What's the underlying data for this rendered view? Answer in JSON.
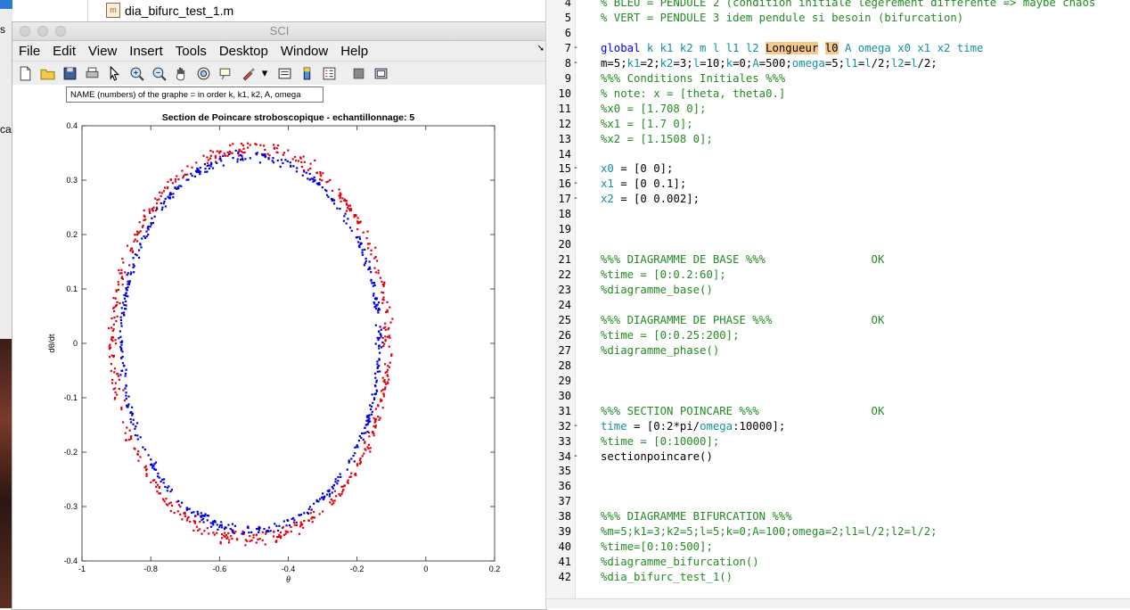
{
  "background": {
    "file_name": "dia_bifurc_test_1.m",
    "left_frag_1": "s",
    "left_frag_2": "ca"
  },
  "figure": {
    "window_title": "SCI",
    "menu": [
      "File",
      "Edit",
      "View",
      "Insert",
      "Tools",
      "Desktop",
      "Window",
      "Help"
    ],
    "toolbar": [
      "new-figure-icon",
      "open-icon",
      "save-icon",
      "print-icon",
      "pointer-icon",
      "zoom-in-icon",
      "zoom-out-icon",
      "pan-hand-icon",
      "rotate-icon",
      "data-cursor-icon",
      "brush-icon",
      "link-icon",
      "colorbar-icon",
      "legend-icon",
      "hide-plot-tools-icon",
      "show-plot-tools-icon"
    ],
    "annotation": "NAME (numbers) of the graphe = in order k, k1, k2, A, omega"
  },
  "chart_data": {
    "type": "scatter",
    "title": "Section de Poincare stroboscopique  - echantillonnage: 5",
    "xlabel": "θ",
    "ylabel": "dθ/dt",
    "xlim": [
      -1,
      0.2
    ],
    "ylim": [
      -0.4,
      0.4
    ],
    "xticks": [
      "-1",
      "-0.8",
      "-0.6",
      "-0.4",
      "-0.2",
      "0",
      "0.2"
    ],
    "yticks": [
      "0.4",
      "0.3",
      "0.2",
      "0.1",
      "0",
      "-0.1",
      "-0.2",
      "-0.3",
      "-0.4"
    ],
    "grid": false,
    "series": [
      {
        "color": "#e0000f",
        "center": [
          -0.51,
          0.0
        ],
        "radius_x": 0.4,
        "radius_y": 0.36,
        "noise": 0.012,
        "count": 560
      },
      {
        "color": "#0000dd",
        "center": [
          -0.51,
          0.0
        ],
        "radius_x": 0.375,
        "radius_y": 0.345,
        "noise": 0.008,
        "count": 540
      }
    ]
  },
  "editor": {
    "lines": [
      {
        "n": "4",
        "m": "",
        "h": "<span class=\"c\">% BLEU = PENDULE 2 (condition initiale légèrement différente => maybe chaos</span>"
      },
      {
        "n": "5",
        "m": "",
        "h": "<span class=\"c\">% VERT = PENDULE 3 idem pendule si besoin (bifurcation)</span>"
      },
      {
        "n": "6",
        "m": "",
        "h": ""
      },
      {
        "n": "7",
        "m": "-",
        "h": "<span class=\"k\">global</span> <span class=\"v\">k k1 k2 m l l1 l2</span> <span class=\"hl\">Longueur</span> <span class=\"hl\">l0</span> <span class=\"v\">A omega x0 x1 x2 time</span>"
      },
      {
        "n": "8",
        "m": "-",
        "h": "m=5;<span class=\"v\">k1</span>=2;<span class=\"v\">k2</span>=3;<span class=\"v\">l</span>=10;<span class=\"v\">k</span>=0;<span class=\"v\">A</span>=500;<span class=\"v\">omega</span>=5;<span class=\"v\">l1</span>=<span class=\"v\">l</span>/2;<span class=\"v\">l2</span>=<span class=\"v\">l</span>/2;"
      },
      {
        "n": "9",
        "m": "",
        "h": "<span class=\"c\">%%% Conditions Initiales %%%</span>"
      },
      {
        "n": "10",
        "m": "",
        "h": "<span class=\"c\">% note: x = [theta, theta0.]</span>"
      },
      {
        "n": "11",
        "m": "",
        "h": "<span class=\"c\">%x0 = [1.708 0];</span>"
      },
      {
        "n": "12",
        "m": "",
        "h": "<span class=\"c\">%x1 = [1.7 0];</span>"
      },
      {
        "n": "13",
        "m": "",
        "h": "<span class=\"c\">%x2 = [1.1508 0];</span>"
      },
      {
        "n": "14",
        "m": "",
        "h": ""
      },
      {
        "n": "15",
        "m": "-",
        "h": "<span class=\"v\">x0</span> = [0 0];"
      },
      {
        "n": "16",
        "m": "-",
        "h": "<span class=\"v\">x1</span> = [0 0.1];"
      },
      {
        "n": "17",
        "m": "-",
        "h": "<span class=\"v\">x2</span> = [0 0.002];"
      },
      {
        "n": "18",
        "m": "",
        "h": ""
      },
      {
        "n": "19",
        "m": "",
        "h": ""
      },
      {
        "n": "20",
        "m": "",
        "h": ""
      },
      {
        "n": "21",
        "m": "",
        "h": "<span class=\"c\">%%% DIAGRAMME DE BASE %%%                OK</span>"
      },
      {
        "n": "22",
        "m": "",
        "h": "<span class=\"c\">%time = [0:0.2:60];</span>"
      },
      {
        "n": "23",
        "m": "",
        "h": "<span class=\"c\">%diagramme_base()</span>"
      },
      {
        "n": "24",
        "m": "",
        "h": ""
      },
      {
        "n": "25",
        "m": "",
        "h": "<span class=\"c\">%%% DIAGRAMME DE PHASE %%%               OK</span>"
      },
      {
        "n": "26",
        "m": "",
        "h": "<span class=\"c\">%time = [0:0.25:200];</span>"
      },
      {
        "n": "27",
        "m": "",
        "h": "<span class=\"c\">%diagramme_phase()</span>"
      },
      {
        "n": "28",
        "m": "",
        "h": ""
      },
      {
        "n": "29",
        "m": "",
        "h": ""
      },
      {
        "n": "30",
        "m": "",
        "h": ""
      },
      {
        "n": "31",
        "m": "",
        "h": "<span class=\"c\">%%% SECTION POINCARE %%%                 OK</span>"
      },
      {
        "n": "32",
        "m": "-",
        "h": "<span class=\"v\">time</span> = [0:2*pi/<span class=\"v\">omega</span>:10000];"
      },
      {
        "n": "33",
        "m": "",
        "h": "<span class=\"c\">%time = [0:10000];</span>"
      },
      {
        "n": "34",
        "m": "-",
        "h": "sectionpoincare()"
      },
      {
        "n": "35",
        "m": "",
        "h": ""
      },
      {
        "n": "36",
        "m": "",
        "h": ""
      },
      {
        "n": "37",
        "m": "",
        "h": ""
      },
      {
        "n": "38",
        "m": "",
        "h": "<span class=\"c\">%%% DIAGRAMME BIFURCATION %%%</span>"
      },
      {
        "n": "39",
        "m": "",
        "h": "<span class=\"c\">%m=5;k1=3;k2=5;l=5;k=0;A=100;omega=2;l1=l/2;l2=l/2;</span>"
      },
      {
        "n": "40",
        "m": "",
        "h": "<span class=\"c\">%time=[0:10:500];</span>"
      },
      {
        "n": "41",
        "m": "",
        "h": "<span class=\"c\">%diagramme_bifurcation()</span>"
      },
      {
        "n": "42",
        "m": "",
        "h": "<span class=\"c\">%dia_bifurc_test_1()</span>"
      }
    ]
  }
}
